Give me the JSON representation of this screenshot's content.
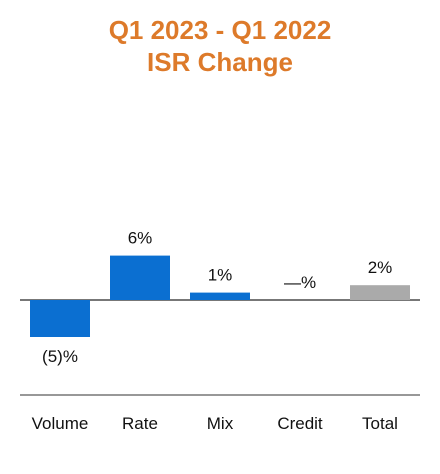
{
  "chart_data": {
    "type": "bar",
    "title": "Q1 2023 - Q1 2022",
    "subtitle": "ISR Change",
    "xlabel": "",
    "ylabel": "",
    "categories": [
      "Volume",
      "Rate",
      "Mix",
      "Credit",
      "Total"
    ],
    "values": [
      -5,
      6,
      1,
      0,
      2
    ],
    "data_labels": [
      "(5)%",
      "6%",
      "1%",
      "—%",
      "2%"
    ],
    "bar_colors": [
      "#0b6fd1",
      "#0b6fd1",
      "#0b6fd1",
      "#0b6fd1",
      "#aaaaaa"
    ],
    "ylim": [
      -6,
      7
    ],
    "grid": false,
    "legend": "none"
  },
  "colors": {
    "title": "#dd7a2a",
    "axis": "#777777"
  }
}
